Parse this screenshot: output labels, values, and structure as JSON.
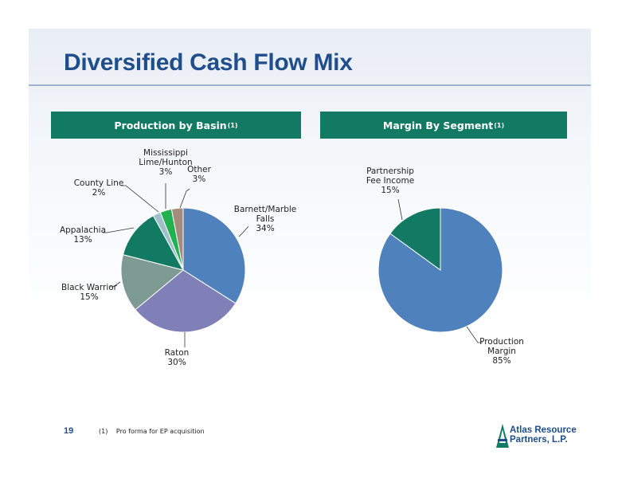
{
  "title": "Diversified Cash Flow Mix",
  "page_number": "19",
  "footnote": {
    "mark": "(1)",
    "text": "Pro forma for EP acquisition"
  },
  "logo": {
    "line1": "Atlas Resource",
    "line2": "Partners, L.P."
  },
  "colors": {
    "banner": "#127a62",
    "title": "#1e4e8c"
  },
  "chart_data": [
    {
      "type": "pie",
      "title": "Production by Basin",
      "title_sup": "(1)",
      "slices": [
        {
          "label": "Barnett/Marble Falls",
          "label_lines": [
            "Barnett/Marble",
            "Falls",
            "34%"
          ],
          "value": 34,
          "color": "#4f81bd"
        },
        {
          "label": "Raton",
          "label_lines": [
            "Raton",
            "30%"
          ],
          "value": 30,
          "color": "#8080b8"
        },
        {
          "label": "Black Warrior",
          "label_lines": [
            "Black Warrior",
            "15%"
          ],
          "value": 15,
          "color": "#7e9b93"
        },
        {
          "label": "Appalachia",
          "label_lines": [
            "Appalachia",
            "13%"
          ],
          "value": 13,
          "color": "#127a62"
        },
        {
          "label": "County Line",
          "label_lines": [
            "County Line",
            "2%"
          ],
          "value": 2,
          "color": "#9fc0c8"
        },
        {
          "label": "Mississippi Lime/Hunton",
          "label_lines": [
            "Mississippi",
            "Lime/Hunton",
            "3%"
          ],
          "value": 3,
          "color": "#22b050"
        },
        {
          "label": "Other",
          "label_lines": [
            "Other",
            "3%"
          ],
          "value": 3,
          "color": "#a48c7c"
        }
      ]
    },
    {
      "type": "pie",
      "title": "Margin By Segment",
      "title_sup": "(1)",
      "slices": [
        {
          "label": "Production Margin",
          "label_lines": [
            "Production",
            "Margin",
            "85%"
          ],
          "value": 85,
          "color": "#4f81bd"
        },
        {
          "label": "Partnership Fee Income",
          "label_lines": [
            "Partnership",
            "Fee Income",
            "15%"
          ],
          "value": 15,
          "color": "#127a62"
        }
      ]
    }
  ]
}
